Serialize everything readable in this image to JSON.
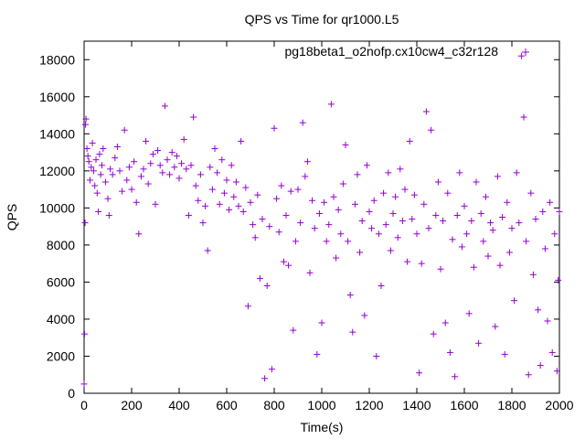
{
  "chart_data": {
    "type": "scatter",
    "title": "QPS vs Time for qr1000.L5",
    "xlabel": "Time(s)",
    "ylabel": "QPS",
    "xlim": [
      0,
      2000
    ],
    "ylim": [
      0,
      19000
    ],
    "xticks": [
      0,
      200,
      400,
      600,
      800,
      1000,
      1200,
      1400,
      1600,
      1800,
      2000
    ],
    "yticks": [
      0,
      2000,
      4000,
      6000,
      8000,
      10000,
      12000,
      14000,
      16000,
      18000
    ],
    "grid": false,
    "legend_position": "top-right",
    "series": [
      {
        "name": "pg18beta1_o2nofp.cx10cw4_c32r128",
        "color": "#9400d3",
        "marker": "plus",
        "points": [
          [
            0,
            500
          ],
          [
            2,
            3200
          ],
          [
            4,
            9200
          ],
          [
            6,
            14500
          ],
          [
            8,
            14800
          ],
          [
            12,
            13200
          ],
          [
            16,
            12800
          ],
          [
            20,
            12500
          ],
          [
            25,
            11500
          ],
          [
            30,
            12200
          ],
          [
            35,
            13500
          ],
          [
            40,
            12000
          ],
          [
            45,
            11200
          ],
          [
            50,
            12600
          ],
          [
            55,
            10800
          ],
          [
            60,
            9800
          ],
          [
            65,
            12900
          ],
          [
            70,
            11800
          ],
          [
            75,
            12300
          ],
          [
            80,
            13200
          ],
          [
            90,
            11400
          ],
          [
            100,
            10500
          ],
          [
            105,
            9600
          ],
          [
            110,
            12100
          ],
          [
            120,
            11800
          ],
          [
            130,
            12700
          ],
          [
            140,
            13300
          ],
          [
            150,
            12000
          ],
          [
            160,
            10900
          ],
          [
            170,
            14200
          ],
          [
            180,
            11500
          ],
          [
            190,
            12200
          ],
          [
            200,
            11000
          ],
          [
            210,
            12500
          ],
          [
            220,
            10300
          ],
          [
            230,
            8600
          ],
          [
            240,
            11700
          ],
          [
            250,
            12100
          ],
          [
            260,
            13600
          ],
          [
            270,
            11300
          ],
          [
            280,
            12400
          ],
          [
            290,
            12900
          ],
          [
            300,
            10200
          ],
          [
            310,
            13100
          ],
          [
            320,
            12300
          ],
          [
            330,
            11900
          ],
          [
            340,
            15500
          ],
          [
            350,
            12600
          ],
          [
            360,
            11800
          ],
          [
            370,
            13000
          ],
          [
            380,
            12200
          ],
          [
            390,
            12800
          ],
          [
            400,
            11600
          ],
          [
            410,
            12400
          ],
          [
            420,
            13700
          ],
          [
            430,
            12100
          ],
          [
            440,
            9600
          ],
          [
            450,
            12300
          ],
          [
            460,
            14900
          ],
          [
            470,
            11200
          ],
          [
            480,
            10400
          ],
          [
            490,
            11800
          ],
          [
            500,
            9200
          ],
          [
            510,
            10100
          ],
          [
            520,
            7700
          ],
          [
            530,
            12200
          ],
          [
            540,
            11000
          ],
          [
            550,
            13200
          ],
          [
            560,
            11900
          ],
          [
            570,
            10200
          ],
          [
            580,
            12600
          ],
          [
            590,
            10800
          ],
          [
            600,
            11500
          ],
          [
            610,
            9900
          ],
          [
            620,
            12300
          ],
          [
            630,
            10600
          ],
          [
            640,
            11400
          ],
          [
            650,
            10100
          ],
          [
            660,
            13600
          ],
          [
            670,
            9800
          ],
          [
            680,
            11100
          ],
          [
            690,
            4700
          ],
          [
            700,
            10300
          ],
          [
            710,
            9100
          ],
          [
            720,
            8400
          ],
          [
            730,
            10700
          ],
          [
            740,
            6200
          ],
          [
            750,
            9400
          ],
          [
            760,
            800
          ],
          [
            770,
            5800
          ],
          [
            780,
            9000
          ],
          [
            790,
            1300
          ],
          [
            800,
            14300
          ],
          [
            810,
            10500
          ],
          [
            820,
            8700
          ],
          [
            830,
            11200
          ],
          [
            840,
            7100
          ],
          [
            850,
            9600
          ],
          [
            860,
            6900
          ],
          [
            870,
            10900
          ],
          [
            880,
            3400
          ],
          [
            890,
            8200
          ],
          [
            900,
            11000
          ],
          [
            910,
            9200
          ],
          [
            920,
            14600
          ],
          [
            930,
            11700
          ],
          [
            940,
            12500
          ],
          [
            950,
            6500
          ],
          [
            960,
            10400
          ],
          [
            970,
            8900
          ],
          [
            980,
            2100
          ],
          [
            990,
            9700
          ],
          [
            1000,
            3800
          ],
          [
            1010,
            10300
          ],
          [
            1020,
            8200
          ],
          [
            1030,
            9100
          ],
          [
            1040,
            15600
          ],
          [
            1050,
            10600
          ],
          [
            1060,
            7300
          ],
          [
            1070,
            9900
          ],
          [
            1080,
            8600
          ],
          [
            1090,
            11300
          ],
          [
            1100,
            13400
          ],
          [
            1110,
            8200
          ],
          [
            1120,
            5300
          ],
          [
            1130,
            3300
          ],
          [
            1140,
            10200
          ],
          [
            1150,
            11800
          ],
          [
            1160,
            7600
          ],
          [
            1170,
            9300
          ],
          [
            1180,
            4200
          ],
          [
            1190,
            12300
          ],
          [
            1200,
            9800
          ],
          [
            1210,
            8900
          ],
          [
            1220,
            10400
          ],
          [
            1230,
            2000
          ],
          [
            1240,
            8600
          ],
          [
            1250,
            5800
          ],
          [
            1260,
            10800
          ],
          [
            1270,
            9100
          ],
          [
            1280,
            11900
          ],
          [
            1290,
            7700
          ],
          [
            1300,
            9700
          ],
          [
            1310,
            10600
          ],
          [
            1320,
            8400
          ],
          [
            1330,
            12100
          ],
          [
            1340,
            9300
          ],
          [
            1350,
            11000
          ],
          [
            1360,
            7100
          ],
          [
            1370,
            13600
          ],
          [
            1380,
            9400
          ],
          [
            1390,
            10700
          ],
          [
            1400,
            8600
          ],
          [
            1410,
            1100
          ],
          [
            1420,
            7000
          ],
          [
            1430,
            10200
          ],
          [
            1440,
            15200
          ],
          [
            1450,
            8900
          ],
          [
            1460,
            14200
          ],
          [
            1470,
            3200
          ],
          [
            1480,
            9600
          ],
          [
            1490,
            11400
          ],
          [
            1500,
            6700
          ],
          [
            1510,
            9300
          ],
          [
            1520,
            3800
          ],
          [
            1530,
            10800
          ],
          [
            1540,
            2200
          ],
          [
            1550,
            8300
          ],
          [
            1560,
            900
          ],
          [
            1570,
            9600
          ],
          [
            1580,
            11900
          ],
          [
            1590,
            7900
          ],
          [
            1600,
            10100
          ],
          [
            1610,
            8600
          ],
          [
            1620,
            4300
          ],
          [
            1630,
            9300
          ],
          [
            1640,
            6800
          ],
          [
            1650,
            11400
          ],
          [
            1660,
            2700
          ],
          [
            1670,
            9700
          ],
          [
            1680,
            8200
          ],
          [
            1690,
            10600
          ],
          [
            1700,
            7400
          ],
          [
            1710,
            9200
          ],
          [
            1720,
            8800
          ],
          [
            1730,
            3600
          ],
          [
            1740,
            11700
          ],
          [
            1750,
            6900
          ],
          [
            1760,
            9500
          ],
          [
            1770,
            2100
          ],
          [
            1780,
            10300
          ],
          [
            1790,
            7600
          ],
          [
            1800,
            8900
          ],
          [
            1810,
            5000
          ],
          [
            1820,
            11900
          ],
          [
            1830,
            9200
          ],
          [
            1840,
            18200
          ],
          [
            1850,
            14900
          ],
          [
            1860,
            8200
          ],
          [
            1870,
            1000
          ],
          [
            1880,
            10800
          ],
          [
            1890,
            6400
          ],
          [
            1900,
            9400
          ],
          [
            1910,
            4500
          ],
          [
            1920,
            1500
          ],
          [
            1930,
            9800
          ],
          [
            1940,
            7800
          ],
          [
            1950,
            3900
          ],
          [
            1960,
            10300
          ],
          [
            1970,
            2200
          ],
          [
            1980,
            8600
          ],
          [
            1990,
            1200
          ],
          [
            1995,
            6100
          ],
          [
            2000,
            9800
          ]
        ]
      }
    ]
  }
}
